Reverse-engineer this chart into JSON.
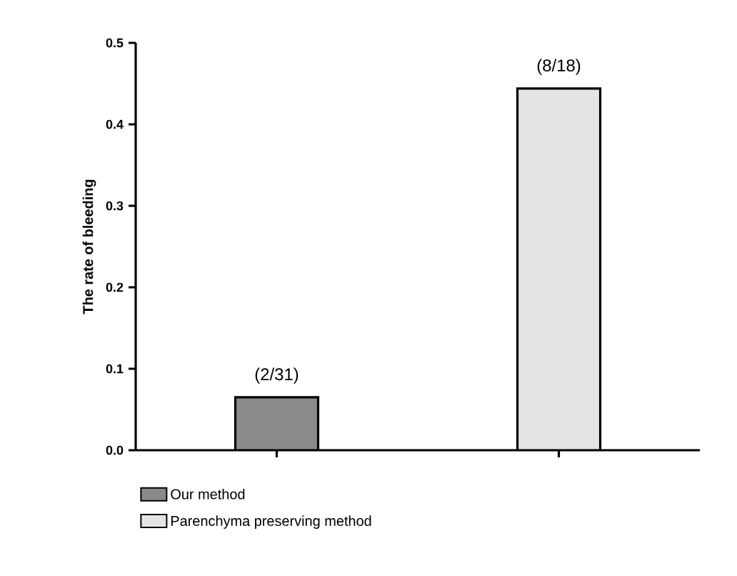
{
  "chart_data": {
    "type": "bar",
    "ylabel": "The rate of bleeding",
    "categories": [
      null,
      null
    ],
    "series": [
      {
        "name": "Our method",
        "color": "#8a8a8a",
        "values": [
          0.065,
          null
        ],
        "value_labels": [
          "(2/31)",
          null
        ]
      },
      {
        "name": "Parenchyma preserving method",
        "color": "#e4e4e4",
        "values": [
          null,
          0.444
        ],
        "value_labels": [
          null,
          "(8/18)"
        ]
      }
    ],
    "ylim": [
      0,
      0.5
    ],
    "yticks": [
      {
        "value": 0,
        "label": "0.0"
      },
      {
        "value": 0.1,
        "label": "0.1"
      },
      {
        "value": 0.2,
        "label": "0.2"
      },
      {
        "value": 0.3,
        "label": "0.3"
      },
      {
        "value": 0.4,
        "label": "0.4"
      },
      {
        "value": 0.5,
        "label": "0.5"
      }
    ],
    "legend": "bottom"
  }
}
